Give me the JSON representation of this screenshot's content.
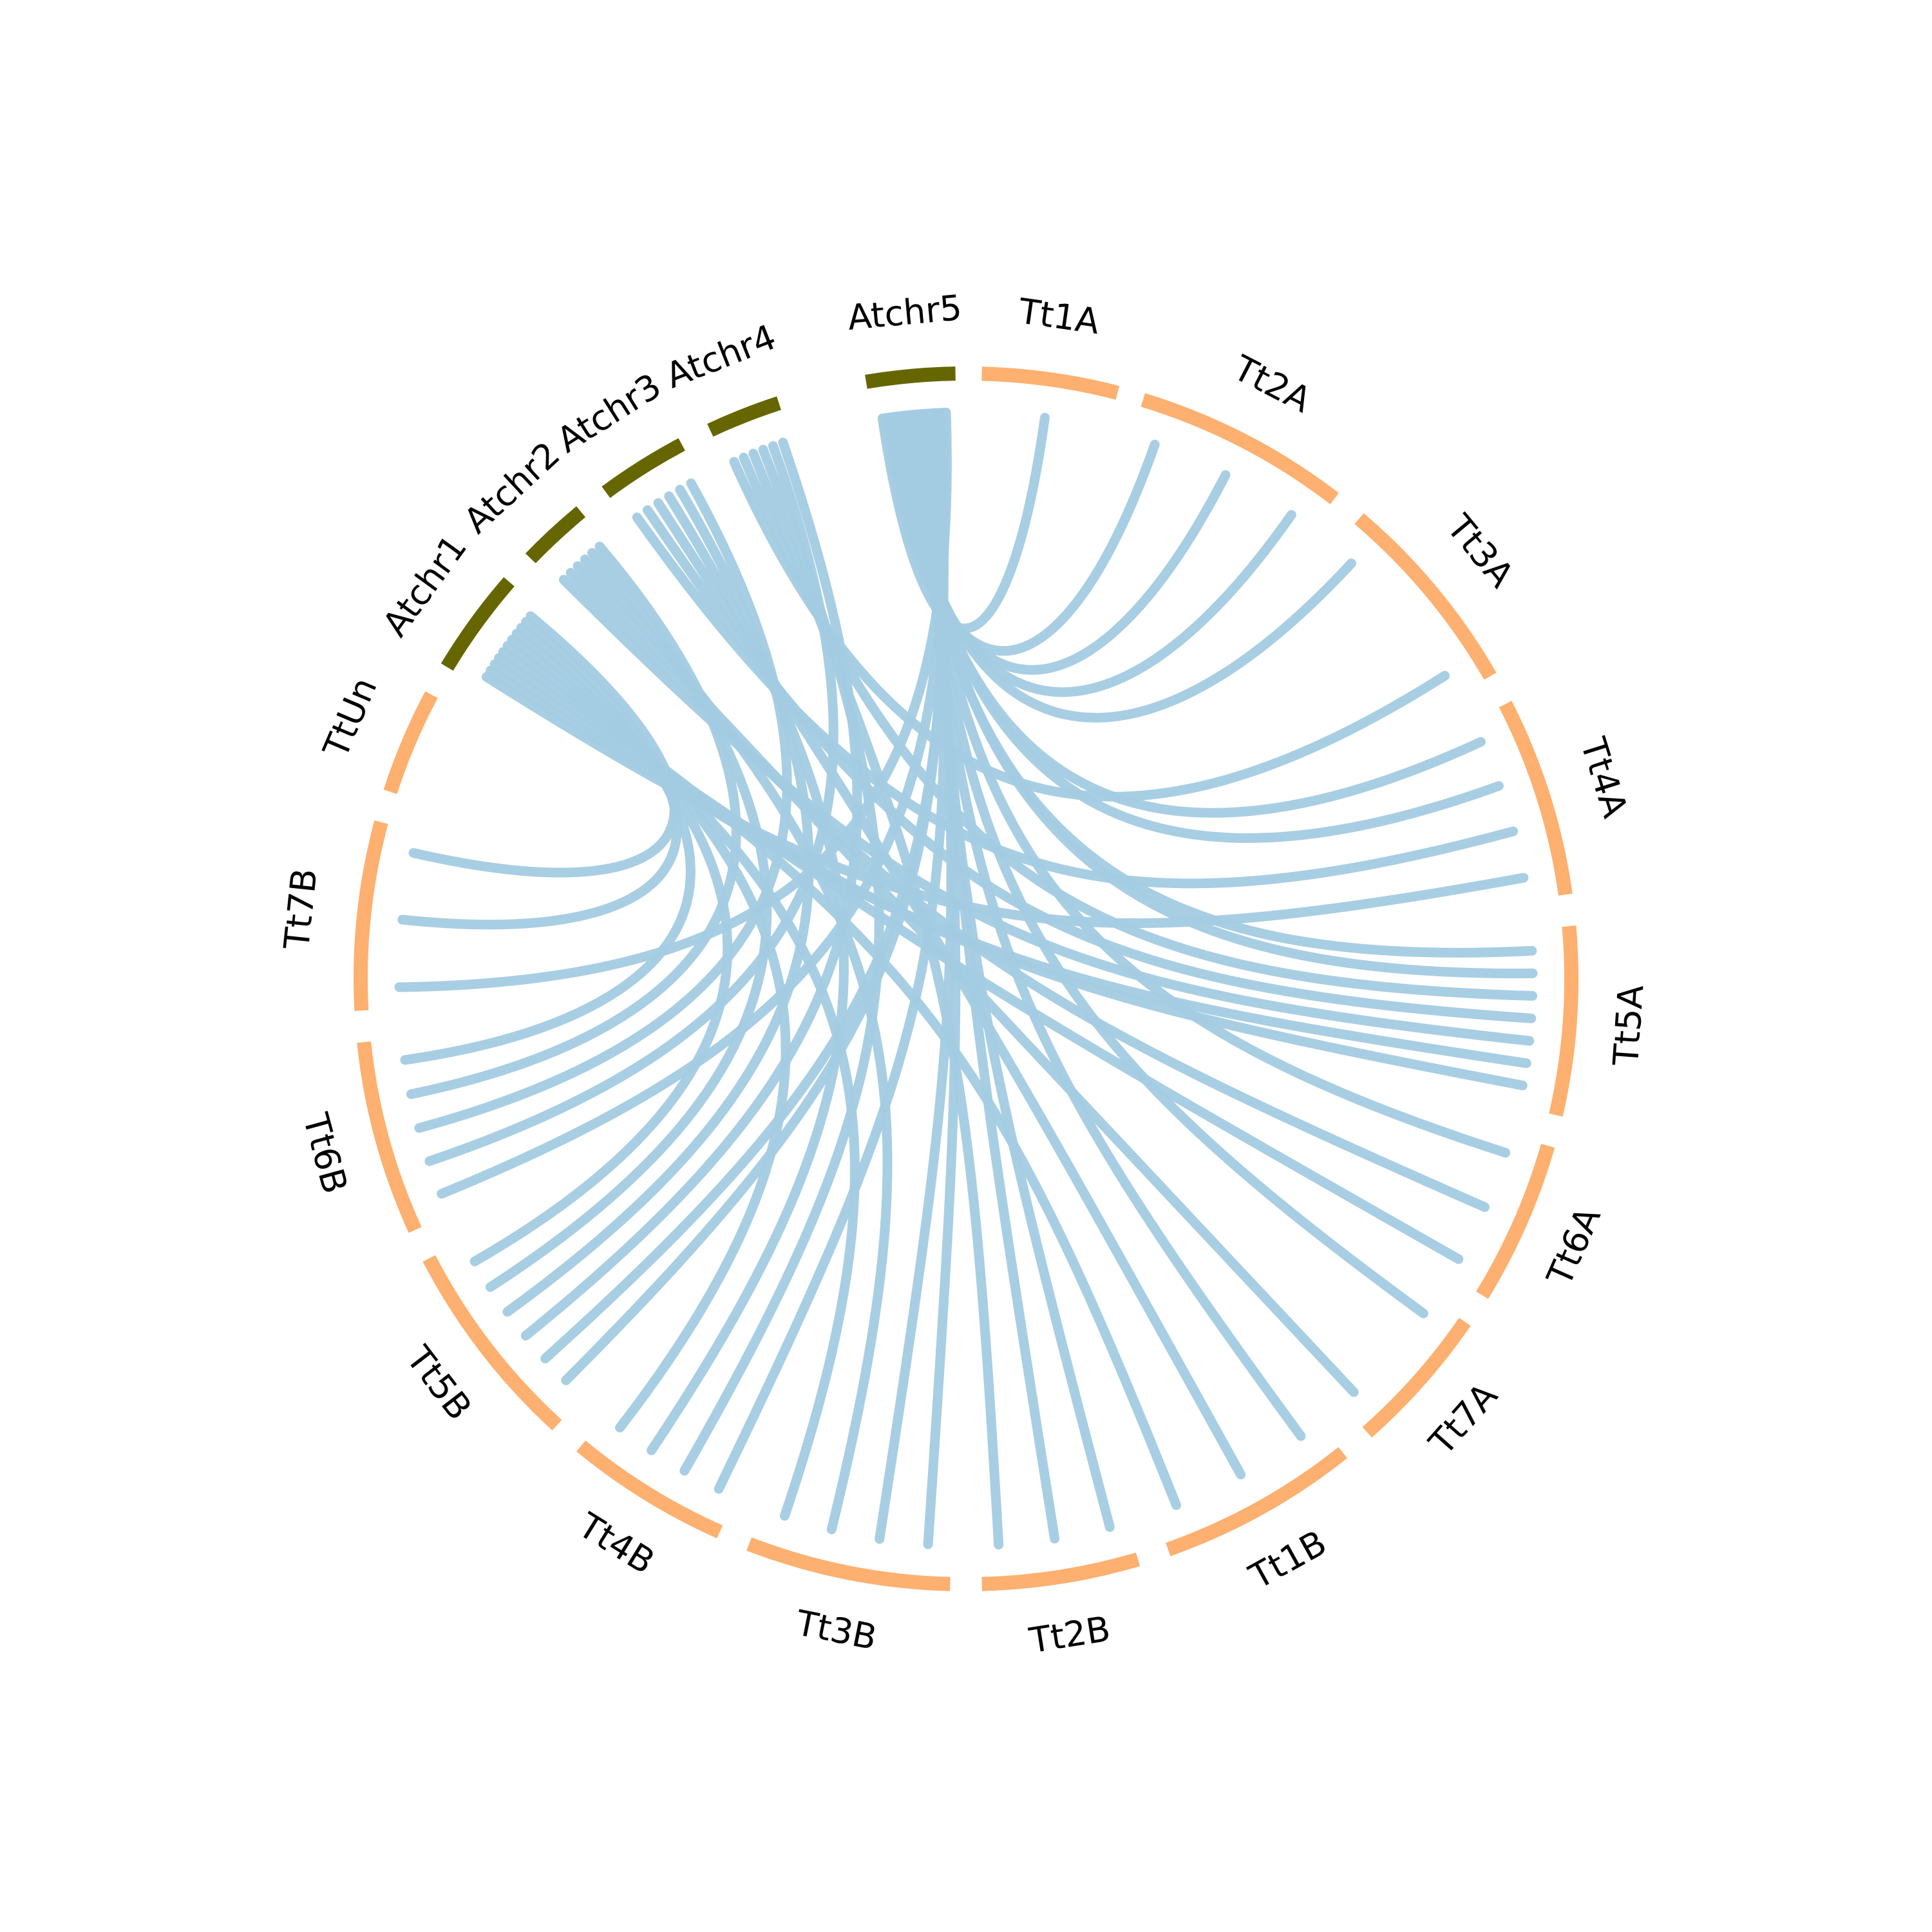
{
  "colors": {
    "arabidopsis": "#666600",
    "wheat": "#fdb06f",
    "link": "#a3cbe1",
    "background": "#ffffff",
    "label": "#000000"
  },
  "segments": [
    {
      "id": "Atchr5",
      "label": "Atchr5",
      "group": "arabidopsis"
    },
    {
      "id": "Tt1A",
      "label": "Tt1A",
      "group": "wheat"
    },
    {
      "id": "Tt2A",
      "label": "Tt2A",
      "group": "wheat"
    },
    {
      "id": "Tt3A",
      "label": "Tt3A",
      "group": "wheat"
    },
    {
      "id": "Tt4A",
      "label": "Tt4A",
      "group": "wheat"
    },
    {
      "id": "Tt5A",
      "label": "Tt5A",
      "group": "wheat"
    },
    {
      "id": "Tt6A",
      "label": "Tt6A",
      "group": "wheat"
    },
    {
      "id": "Tt7A",
      "label": "Tt7A",
      "group": "wheat"
    },
    {
      "id": "Tt1B",
      "label": "Tt1B",
      "group": "wheat"
    },
    {
      "id": "Tt2B",
      "label": "Tt2B",
      "group": "wheat"
    },
    {
      "id": "Tt3B",
      "label": "Tt3B",
      "group": "wheat"
    },
    {
      "id": "Tt4B",
      "label": "Tt4B",
      "group": "wheat"
    },
    {
      "id": "Tt5B",
      "label": "Tt5B",
      "group": "wheat"
    },
    {
      "id": "Tt6B",
      "label": "Tt6B",
      "group": "wheat"
    },
    {
      "id": "Tt7B",
      "label": "Tt7B",
      "group": "wheat"
    },
    {
      "id": "TtUn",
      "label": "TtUn",
      "group": "wheat"
    },
    {
      "id": "Atchr1",
      "label": "Atchr1",
      "group": "arabidopsis"
    },
    {
      "id": "Atchr2",
      "label": "Atchr2",
      "group": "arabidopsis"
    },
    {
      "id": "Atchr3",
      "label": "Atchr3",
      "group": "arabidopsis"
    },
    {
      "id": "Atchr4",
      "label": "Atchr4",
      "group": "arabidopsis"
    }
  ],
  "links": [
    {
      "from": "Atchr5",
      "to": "Tt1A"
    },
    {
      "from": "Atchr5",
      "to": "Tt2A"
    },
    {
      "from": "Atchr5",
      "to": "Tt2A"
    },
    {
      "from": "Atchr5",
      "to": "Tt2A"
    },
    {
      "from": "Atchr5",
      "to": "Tt3A"
    },
    {
      "from": "Atchr5",
      "to": "Tt4A"
    },
    {
      "from": "Atchr5",
      "to": "Tt4A"
    },
    {
      "from": "Atchr5",
      "to": "Tt5A"
    },
    {
      "from": "Atchr5",
      "to": "Tt5A"
    },
    {
      "from": "Atchr5",
      "to": "Tt6A"
    },
    {
      "from": "Atchr5",
      "to": "Tt7A"
    },
    {
      "from": "Atchr5",
      "to": "Tt1B"
    },
    {
      "from": "Atchr5",
      "to": "Tt2B"
    },
    {
      "from": "Atchr5",
      "to": "Tt2B"
    },
    {
      "from": "Atchr5",
      "to": "Tt3B"
    },
    {
      "from": "Atchr5",
      "to": "Tt3B"
    },
    {
      "from": "Atchr5",
      "to": "Tt4B"
    },
    {
      "from": "Atchr5",
      "to": "Tt5B"
    },
    {
      "from": "Atchr5",
      "to": "Tt5B"
    },
    {
      "from": "Atchr5",
      "to": "Tt6B"
    },
    {
      "from": "Atchr5",
      "to": "Tt7B"
    },
    {
      "from": "Atchr4",
      "to": "Tt3A"
    },
    {
      "from": "Atchr4",
      "to": "Tt5A"
    },
    {
      "from": "Atchr4",
      "to": "Tt2B"
    },
    {
      "from": "Atchr4",
      "to": "Tt4B"
    },
    {
      "from": "Atchr4",
      "to": "Tt6B"
    },
    {
      "from": "Atchr4",
      "to": "Tt5B"
    },
    {
      "from": "Atchr3",
      "to": "Tt4A"
    },
    {
      "from": "Atchr3",
      "to": "Tt5A"
    },
    {
      "from": "Atchr3",
      "to": "Tt1B"
    },
    {
      "from": "Atchr3",
      "to": "Tt4B"
    },
    {
      "from": "Atchr3",
      "to": "Tt5B"
    },
    {
      "from": "Atchr3",
      "to": "Tt6B"
    },
    {
      "from": "Atchr2",
      "to": "Tt5A"
    },
    {
      "from": "Atchr2",
      "to": "Tt6A"
    },
    {
      "from": "Atchr2",
      "to": "Tt7A"
    },
    {
      "from": "Atchr2",
      "to": "Tt3B"
    },
    {
      "from": "Atchr2",
      "to": "Tt5B"
    },
    {
      "from": "Atchr2",
      "to": "Tt6B"
    },
    {
      "from": "Atchr1",
      "to": "Tt4A"
    },
    {
      "from": "Atchr1",
      "to": "Tt5A"
    },
    {
      "from": "Atchr1",
      "to": "Tt5A"
    },
    {
      "from": "Atchr1",
      "to": "Tt6A"
    },
    {
      "from": "Atchr1",
      "to": "Tt1B"
    },
    {
      "from": "Atchr1",
      "to": "Tt3B"
    },
    {
      "from": "Atchr1",
      "to": "Tt4B"
    },
    {
      "from": "Atchr1",
      "to": "Tt5B"
    },
    {
      "from": "Atchr1",
      "to": "Tt6B"
    },
    {
      "from": "Atchr1",
      "to": "Tt7B"
    },
    {
      "from": "Atchr1",
      "to": "Tt7B"
    }
  ]
}
